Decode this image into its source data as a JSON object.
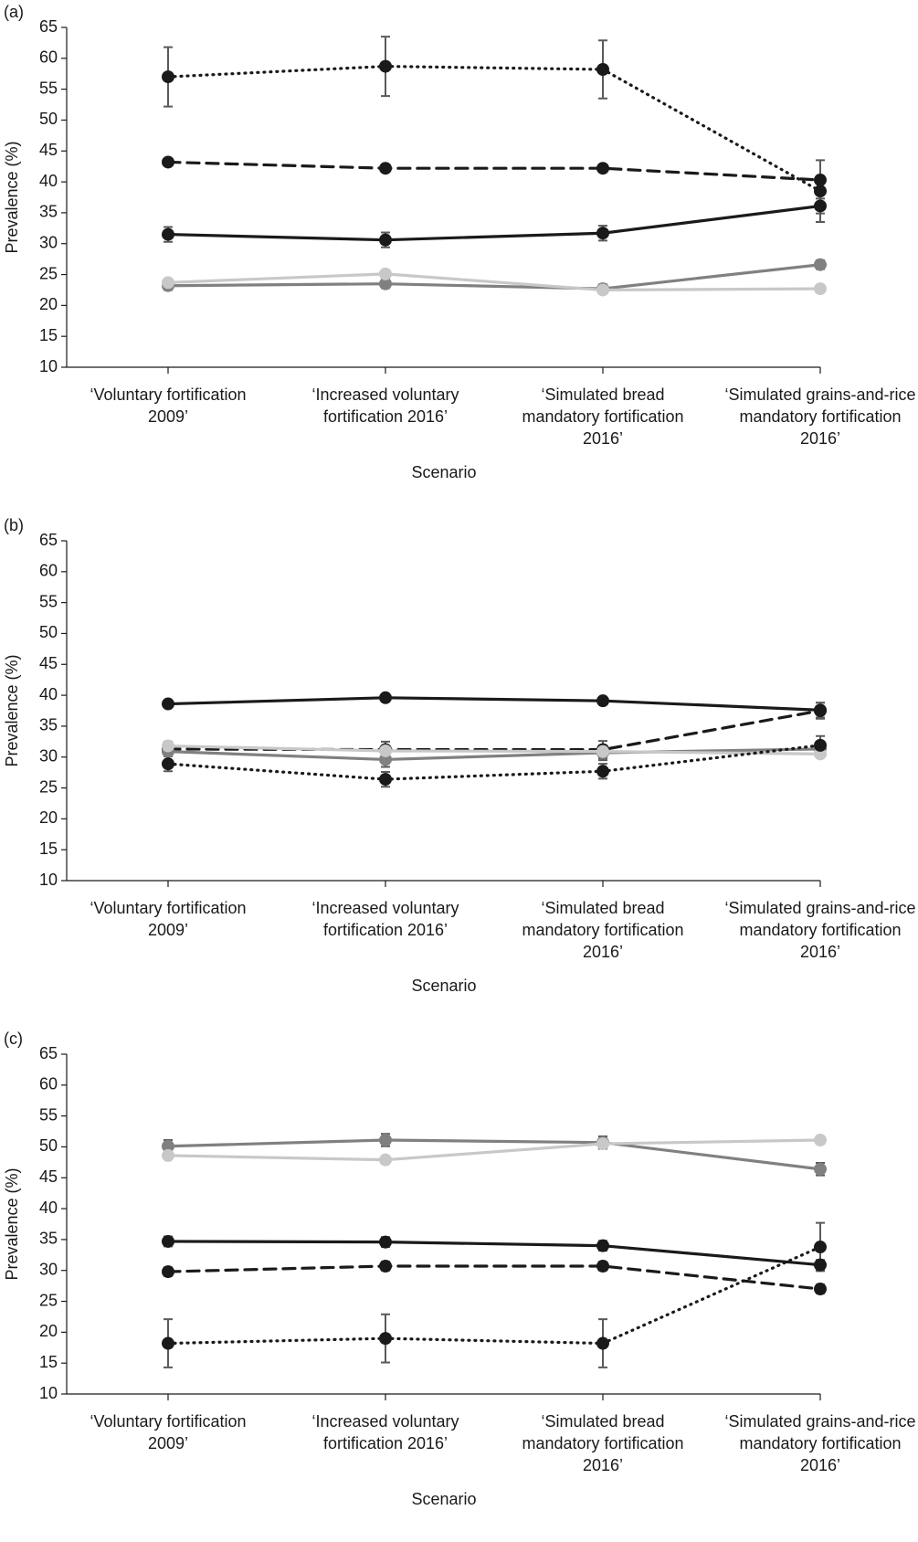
{
  "chart_data": [
    {
      "type": "line",
      "label": "(a)",
      "xlabel": "Scenario",
      "ylabel": "Prevalence (%)",
      "categories": [
        "‘Voluntary fortification 2009’",
        "‘Increased voluntary fortification 2016’",
        "‘Simulated bread mandatory fortification 2016’",
        "‘Simulated grains-and-rice mandatory fortification 2016’"
      ],
      "ylim": [
        10,
        65
      ],
      "yticks": [
        10,
        15,
        20,
        25,
        30,
        35,
        40,
        45,
        50,
        55,
        60,
        65
      ],
      "series": [
        {
          "color": "#1a1a1a",
          "linestyle": "dotted",
          "values": [
            57,
            58.7,
            58.2,
            38.5
          ],
          "errors": [
            4.8,
            4.8,
            4.7,
            5
          ]
        },
        {
          "color": "#1a1a1a",
          "linestyle": "dashed",
          "values": [
            43.2,
            42.2,
            42.2,
            40.3
          ],
          "errors": [
            0.5,
            0.5,
            0.5,
            0.6
          ]
        },
        {
          "color": "#1a1a1a",
          "linestyle": "solid",
          "values": [
            31.5,
            30.6,
            31.7,
            36.1
          ],
          "errors": [
            1.2,
            1.2,
            1.2,
            1.2
          ]
        },
        {
          "color": "#808080",
          "linestyle": "solid",
          "values": [
            23.2,
            23.5,
            22.7,
            26.6
          ],
          "errors": [
            0.7,
            0.7,
            0.7,
            0.7
          ]
        },
        {
          "color": "#c8c8c8",
          "linestyle": "solid",
          "values": [
            23.7,
            25.1,
            22.5,
            22.7
          ],
          "errors": [
            0.5,
            0.5,
            0.5,
            0.5
          ]
        }
      ]
    },
    {
      "type": "line",
      "label": "(b)",
      "xlabel": "Scenario",
      "ylabel": "Prevalence (%)",
      "categories": [
        "‘Voluntary fortification 2009’",
        "‘Increased voluntary fortification 2016’",
        "‘Simulated bread mandatory fortification 2016’",
        "‘Simulated grains-and-rice mandatory fortification 2016’"
      ],
      "ylim": [
        10,
        65
      ],
      "yticks": [
        10,
        15,
        20,
        25,
        30,
        35,
        40,
        45,
        50,
        55,
        60,
        65
      ],
      "series": [
        {
          "color": "#1a1a1a",
          "linestyle": "solid",
          "values": [
            38.6,
            39.6,
            39.1,
            37.6
          ],
          "errors": [
            0.5,
            0.5,
            0.5,
            1.2
          ]
        },
        {
          "color": "#1a1a1a",
          "linestyle": "dashed",
          "values": [
            31.3,
            31.2,
            31.2,
            37.5
          ],
          "errors": [
            1.2,
            1.3,
            1.4,
            1.3
          ]
        },
        {
          "color": "#808080",
          "linestyle": "solid",
          "values": [
            30.9,
            29.6,
            30.7,
            31.3
          ],
          "errors": [
            1.4,
            1.2,
            1.2,
            1.2
          ]
        },
        {
          "color": "#c8c8c8",
          "linestyle": "solid",
          "values": [
            31.8,
            31,
            30.9,
            30.5
          ],
          "errors": [
            0.6,
            0.6,
            0.6,
            0.6
          ]
        },
        {
          "color": "#1a1a1a",
          "linestyle": "dotted",
          "values": [
            28.9,
            26.4,
            27.7,
            31.9
          ],
          "errors": [
            1.2,
            1.2,
            1.2,
            1.5
          ]
        }
      ]
    },
    {
      "type": "line",
      "label": "(c)",
      "xlabel": "Scenario",
      "ylabel": "Prevalence (%)",
      "categories": [
        "‘Voluntary fortification 2009’",
        "‘Increased voluntary fortification 2016’",
        "‘Simulated bread mandatory fortification 2016’",
        "‘Simulated grains-and-rice mandatory fortification 2016’"
      ],
      "ylim": [
        10,
        65
      ],
      "yticks": [
        10,
        15,
        20,
        25,
        30,
        35,
        40,
        45,
        50,
        55,
        60,
        65
      ],
      "series": [
        {
          "color": "#808080",
          "linestyle": "solid",
          "values": [
            50.1,
            51.1,
            50.7,
            46.4
          ],
          "errors": [
            1,
            1,
            1,
            1
          ]
        },
        {
          "color": "#c8c8c8",
          "linestyle": "solid",
          "values": [
            48.6,
            47.9,
            50.5,
            51.1
          ],
          "errors": [
            0.5,
            0.5,
            0.5,
            0.5
          ]
        },
        {
          "color": "#1a1a1a",
          "linestyle": "solid",
          "values": [
            34.7,
            34.6,
            34,
            30.9
          ],
          "errors": [
            0.8,
            0.8,
            0.8,
            0.8
          ]
        },
        {
          "color": "#1a1a1a",
          "linestyle": "dashed",
          "values": [
            29.8,
            30.7,
            30.7,
            27
          ],
          "errors": [
            0.7,
            0.7,
            0.7,
            0.7
          ]
        },
        {
          "color": "#1a1a1a",
          "linestyle": "dotted",
          "values": [
            18.2,
            19,
            18.2,
            33.8
          ],
          "errors": [
            3.9,
            3.9,
            3.9,
            3.9
          ]
        }
      ]
    }
  ]
}
